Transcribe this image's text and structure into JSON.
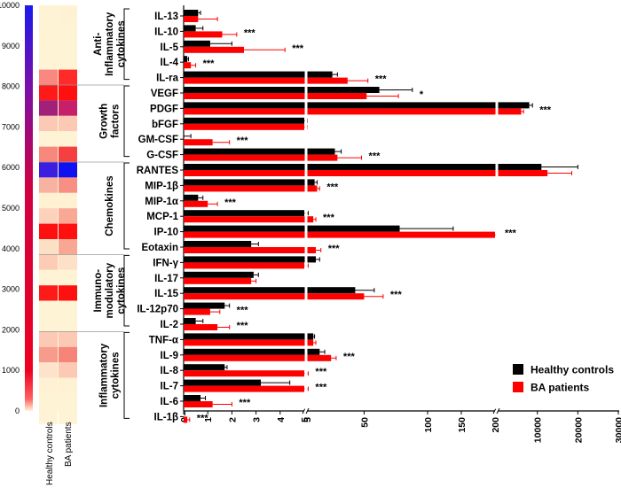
{
  "chart_data": {
    "type": "bar",
    "orientation": "horizontal",
    "segmented_x_axis": true,
    "series": [
      {
        "name": "Healthy controls",
        "color": "#000000"
      },
      {
        "name": "BA patients",
        "color": "#ff0000"
      }
    ],
    "legend_position": "bottom-right",
    "colorbar": {
      "min_label": "0",
      "max_label": "10000",
      "ticks": [
        "0",
        "1000",
        "2000",
        "3000",
        "4000",
        "5000",
        "6000",
        "7000",
        "8000",
        "9000",
        "10000"
      ],
      "low_color": "#fff5d8",
      "mid_color": "#ee0020",
      "high_color": "#1a1aee"
    },
    "heatmap_columns": [
      "Healthy controls",
      "BA patients"
    ],
    "x_segments": [
      {
        "range": [
          0,
          5
        ],
        "ticks": [
          "0",
          "1",
          "2",
          "3",
          "4",
          "5"
        ]
      },
      {
        "range": [
          5,
          100
        ],
        "ticks": [
          "5",
          "50",
          "100"
        ]
      },
      {
        "range": [
          100,
          200
        ],
        "ticks": [
          "150",
          "200"
        ]
      },
      {
        "range": [
          200,
          30000
        ],
        "ticks": [
          "10000",
          "20000",
          "30000"
        ]
      }
    ],
    "groups": [
      {
        "label_lines": [
          "Anti-",
          "Inflammatory",
          "cytokines"
        ],
        "rows": [
          {
            "cytokine": "IL-13",
            "hc": 0.6,
            "hc_err": 0.1,
            "ba": 0.6,
            "ba_err": 0.8,
            "sig": ""
          },
          {
            "cytokine": "IL-10",
            "hc": 0.5,
            "hc_err": 0.3,
            "ba": 1.6,
            "ba_err": 0.6,
            "sig": "***"
          },
          {
            "cytokine": "IL-5",
            "hc": 1.1,
            "hc_err": 0.9,
            "ba": 2.5,
            "ba_err": 1.7,
            "sig": "***"
          },
          {
            "cytokine": "IL-4",
            "hc": 0.15,
            "hc_err": 0.05,
            "ba": 0.3,
            "ba_err": 0.2,
            "sig": "***"
          },
          {
            "cytokine": "IL-ra",
            "hc": 25,
            "hc_err": 4,
            "ba": 37,
            "ba_err": 16,
            "sig": "***"
          }
        ]
      },
      {
        "label_lines": [
          "Growth",
          "factors"
        ],
        "rows": [
          {
            "cytokine": "VEGF",
            "hc": 62,
            "hc_err": 26,
            "ba": 52,
            "ba_err": 25,
            "sig": "*"
          },
          {
            "cytokine": "PDGF",
            "hc": 8000,
            "hc_err": 800,
            "ba": 6000,
            "ba_err": 600,
            "sig": "***"
          },
          {
            "cytokine": "bFGF",
            "hc": 5,
            "hc_err": 0.3,
            "ba": 5,
            "ba_err": 0.3,
            "sig": ""
          },
          {
            "cytokine": "GM-CSF",
            "hc": 0,
            "hc_err": 0.3,
            "ba": 1.2,
            "ba_err": 0.7,
            "sig": "***"
          },
          {
            "cytokine": "G-CSF",
            "hc": 27,
            "hc_err": 5,
            "ba": 29,
            "ba_err": 19,
            "sig": "***"
          }
        ]
      },
      {
        "label_lines": [
          "Chemokines"
        ],
        "rows": [
          {
            "cytokine": "RANTES",
            "hc": 11000,
            "hc_err": 9000,
            "ba": 12500,
            "ba_err": 6000,
            "sig": ""
          },
          {
            "cytokine": "MIP-1β",
            "hc": 11,
            "hc_err": 2,
            "ba": 13,
            "ba_err": 2,
            "sig": "***"
          },
          {
            "cytokine": "MIP-1α",
            "hc": 0.6,
            "hc_err": 0.2,
            "ba": 1,
            "ba_err": 0.4,
            "sig": "***"
          },
          {
            "cytokine": "MCP-1",
            "hc": 5,
            "hc_err": 1,
            "ba": 10,
            "ba_err": 2,
            "sig": "***"
          },
          {
            "cytokine": "IP-10",
            "hc": 78,
            "hc_err": 60,
            "ba": 200,
            "ba_err": 1,
            "sig": "***"
          },
          {
            "cytokine": "Eotaxin",
            "hc": 2.8,
            "hc_err": 0.3,
            "ba": 12,
            "ba_err": 4,
            "sig": "***"
          }
        ]
      },
      {
        "label_lines": [
          "Immuno-",
          "modulatory",
          "cytokines"
        ],
        "rows": [
          {
            "cytokine": "IFN-γ",
            "hc": 12,
            "hc_err": 3,
            "ba": 5,
            "ba_err": 1,
            "sig": ""
          },
          {
            "cytokine": "IL-17",
            "hc": 2.9,
            "hc_err": 0.2,
            "ba": 2.8,
            "ba_err": 0.2,
            "sig": ""
          },
          {
            "cytokine": "IL-15",
            "hc": 43,
            "hc_err": 15,
            "ba": 50,
            "ba_err": 15,
            "sig": "***"
          },
          {
            "cytokine": "IL-12p70",
            "hc": 1.7,
            "hc_err": 0.2,
            "ba": 1.1,
            "ba_err": 0.4,
            "sig": "***"
          },
          {
            "cytokine": "IL-2",
            "hc": 0.5,
            "hc_err": 0.3,
            "ba": 1.4,
            "ba_err": 0.5,
            "sig": "***"
          }
        ]
      },
      {
        "label_lines": [
          "Inflammatory",
          "cytokines"
        ],
        "rows": [
          {
            "cytokine": "TNF-α",
            "hc": 10,
            "hc_err": 1,
            "ba": 10,
            "ba_err": 2,
            "sig": ""
          },
          {
            "cytokine": "IL-9",
            "hc": 15,
            "hc_err": 4,
            "ba": 24,
            "ba_err": 4,
            "sig": "***"
          },
          {
            "cytokine": "IL-8",
            "hc": 1.7,
            "hc_err": 0.1,
            "ba": 5,
            "ba_err": 1,
            "sig": "***"
          },
          {
            "cytokine": "IL-7",
            "hc": 3.2,
            "hc_err": 1.2,
            "ba": 5,
            "ba_err": 1,
            "sig": "***"
          },
          {
            "cytokine": "IL-6",
            "hc": 0.7,
            "hc_err": 0.2,
            "ba": 1.2,
            "ba_err": 0.8,
            "sig": "***"
          },
          {
            "cytokine": "IL-1β",
            "hc": 0,
            "hc_err": 0.05,
            "ba": 0.15,
            "ba_err": 0.1,
            "sig": "***"
          }
        ]
      }
    ],
    "heatmap_rows": [
      {
        "cytokine": "IL-13",
        "hc": "#fff3d6",
        "ba": "#fff2d4"
      },
      {
        "cytokine": "IL-10",
        "hc": "#fff3d6",
        "ba": "#fff3d6"
      },
      {
        "cytokine": "IL-5",
        "hc": "#fff3d6",
        "ba": "#fff3d6"
      },
      {
        "cytokine": "IL-4",
        "hc": "#fff3d6",
        "ba": "#fff3d6"
      },
      {
        "cytokine": "IL-ra",
        "hc": "#f98880",
        "ba": "#ff2a2a"
      },
      {
        "cytokine": "VEGF",
        "hc": "#ff1a1a",
        "ba": "#ff1010"
      },
      {
        "cytokine": "PDGF",
        "hc": "#a0207a",
        "ba": "#c6206a"
      },
      {
        "cytokine": "bFGF",
        "hc": "#fccab4",
        "ba": "#fccab4"
      },
      {
        "cytokine": "GM-CSF",
        "hc": "#fff3d6",
        "ba": "#fff3d6"
      },
      {
        "cytokine": "G-CSF",
        "hc": "#f9887c",
        "ba": "#f44040"
      },
      {
        "cytokine": "RANTES",
        "hc": "#3c1ee0",
        "ba": "#1010f0"
      },
      {
        "cytokine": "MIP-1β",
        "hc": "#f7b2a2",
        "ba": "#f88f84"
      },
      {
        "cytokine": "MIP-1α",
        "hc": "#fff1d2",
        "ba": "#fff1d2"
      },
      {
        "cytokine": "MCP-1",
        "hc": "#fdd2bc",
        "ba": "#f9a896"
      },
      {
        "cytokine": "IP-10",
        "hc": "#ff1010",
        "ba": "#ff1010"
      },
      {
        "cytokine": "Eotaxin",
        "hc": "#fce0c6",
        "ba": "#f8a892"
      },
      {
        "cytokine": "IFN-γ",
        "hc": "#fcccb6",
        "ba": "#fde0c8"
      },
      {
        "cytokine": "IL-17",
        "hc": "#fff3d6",
        "ba": "#fff3d6"
      },
      {
        "cytokine": "IL-15",
        "hc": "#ff1a1a",
        "ba": "#ff1010"
      },
      {
        "cytokine": "IL-12p70",
        "hc": "#fff3d6",
        "ba": "#fff3d6"
      },
      {
        "cytokine": "IL-2",
        "hc": "#fff3d6",
        "ba": "#fff3d6"
      },
      {
        "cytokine": "TNF-α",
        "hc": "#fccab4",
        "ba": "#fccab4"
      },
      {
        "cytokine": "IL-9",
        "hc": "#f79c8c",
        "ba": "#f78478"
      },
      {
        "cytokine": "IL-8",
        "hc": "#fde3c9",
        "ba": "#fccab4"
      },
      {
        "cytokine": "IL-7",
        "hc": "#fff2d4",
        "ba": "#fff2d4"
      },
      {
        "cytokine": "IL-6",
        "hc": "#fff3d6",
        "ba": "#fff3d6"
      },
      {
        "cytokine": "IL-1β",
        "hc": "#fff3d6",
        "ba": "#fff3d6"
      }
    ]
  }
}
